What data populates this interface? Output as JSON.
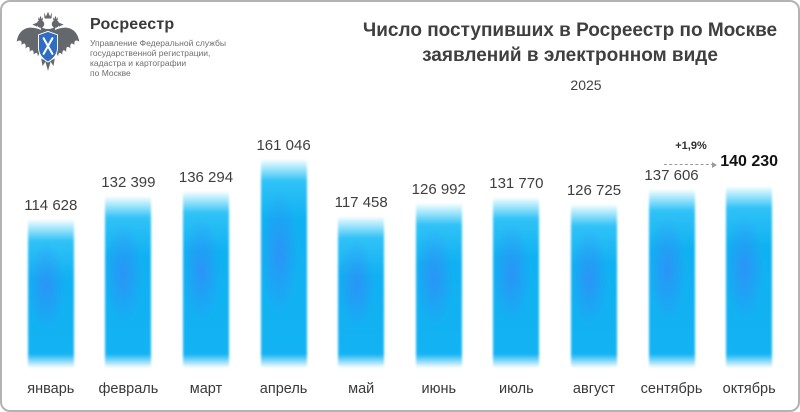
{
  "logo": {
    "brand": "Росреестр",
    "org_lines": [
      "Управление Федеральной службы",
      "государственной регистрации,",
      "кадастра и картографии",
      "по Москве"
    ],
    "emblem_icon": "rosreestr-double-eagle-icon",
    "eagle_color": "#64676c",
    "shield_color": "#2f6cc3"
  },
  "header": {
    "title_line1": "Число поступивших в Росреестр по Москве",
    "title_line2": "заявлений в электронном виде",
    "subtitle": "2025"
  },
  "chart_data": {
    "type": "bar",
    "title": "Число поступивших в Росреестр по Москве заявлений в электронном виде",
    "subtitle": "2025",
    "categories": [
      "январь",
      "февраль",
      "март",
      "апрель",
      "май",
      "июнь",
      "июль",
      "август",
      "сентябрь",
      "октябрь"
    ],
    "values": [
      114628,
      132399,
      136294,
      161046,
      117458,
      126992,
      131770,
      126725,
      137606,
      140230
    ],
    "value_labels": [
      "114 628",
      "132 399",
      "136 294",
      "161 046",
      "117 458",
      "126 992",
      "131 770",
      "126 725",
      "137 606",
      "140 230"
    ],
    "emphasized_index": 9,
    "annotation": {
      "text": "+1,9%",
      "from": "сентябрь",
      "to": "октябрь"
    },
    "xlabel": "",
    "ylabel": "",
    "ylim": [
      0,
      161046
    ],
    "grid": false,
    "legend": false,
    "bar_color_cyan": "#10b2f2",
    "bar_color_blue_glow": "#3f7cfa"
  }
}
